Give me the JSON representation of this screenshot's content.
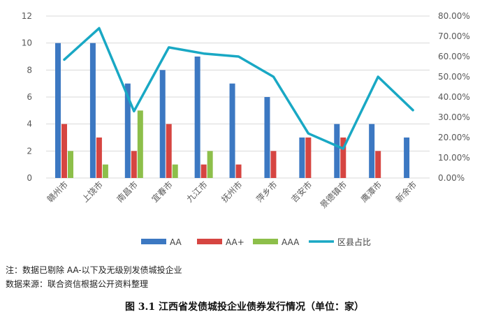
{
  "chart_data": {
    "type": "bar",
    "categories": [
      "赣州市",
      "上饶市",
      "南昌市",
      "宜春市",
      "九江市",
      "抚州市",
      "萍乡市",
      "吉安市",
      "景德镇市",
      "鹰潭市",
      "新余市"
    ],
    "series": [
      {
        "name": "AA",
        "type": "bar",
        "axis": "left",
        "color": "#3C78C2",
        "values": [
          10,
          10,
          7,
          8,
          9,
          7,
          6,
          3,
          4,
          4,
          3
        ]
      },
      {
        "name": "AA+",
        "type": "bar",
        "axis": "left",
        "color": "#D64541",
        "values": [
          4,
          3,
          2,
          4,
          1,
          1,
          2,
          3,
          3,
          2,
          null
        ]
      },
      {
        "name": "AAA",
        "type": "bar",
        "axis": "left",
        "color": "#8DBF4A",
        "values": [
          2,
          1,
          5,
          1,
          2,
          null,
          null,
          null,
          null,
          null,
          null
        ]
      },
      {
        "name": "区县占比",
        "type": "line",
        "axis": "right",
        "color": "#19A8C4",
        "values": [
          0.585,
          0.74,
          0.33,
          0.645,
          0.615,
          0.6,
          0.5,
          0.22,
          0.145,
          0.5,
          0.335
        ]
      }
    ],
    "y_left": {
      "ylim": [
        0,
        12
      ],
      "ticks": [
        "0",
        "2",
        "4",
        "6",
        "8",
        "10",
        "12"
      ]
    },
    "y_right": {
      "ylim": [
        0,
        0.8
      ],
      "ticks": [
        "0.00%",
        "10.00%",
        "20.00%",
        "30.00%",
        "40.00%",
        "50.00%",
        "60.00%",
        "70.00%",
        "80.00%"
      ]
    },
    "grid": true,
    "legend_position": "bottom"
  },
  "notes": {
    "note1": "注：数据已剔除 AA-以下及无级别发债城投企业",
    "note2": "数据来源：联合资信根据公开资料整理"
  },
  "caption": "图 3.1  江西省发债城投企业债券发行情况（单位：家）"
}
